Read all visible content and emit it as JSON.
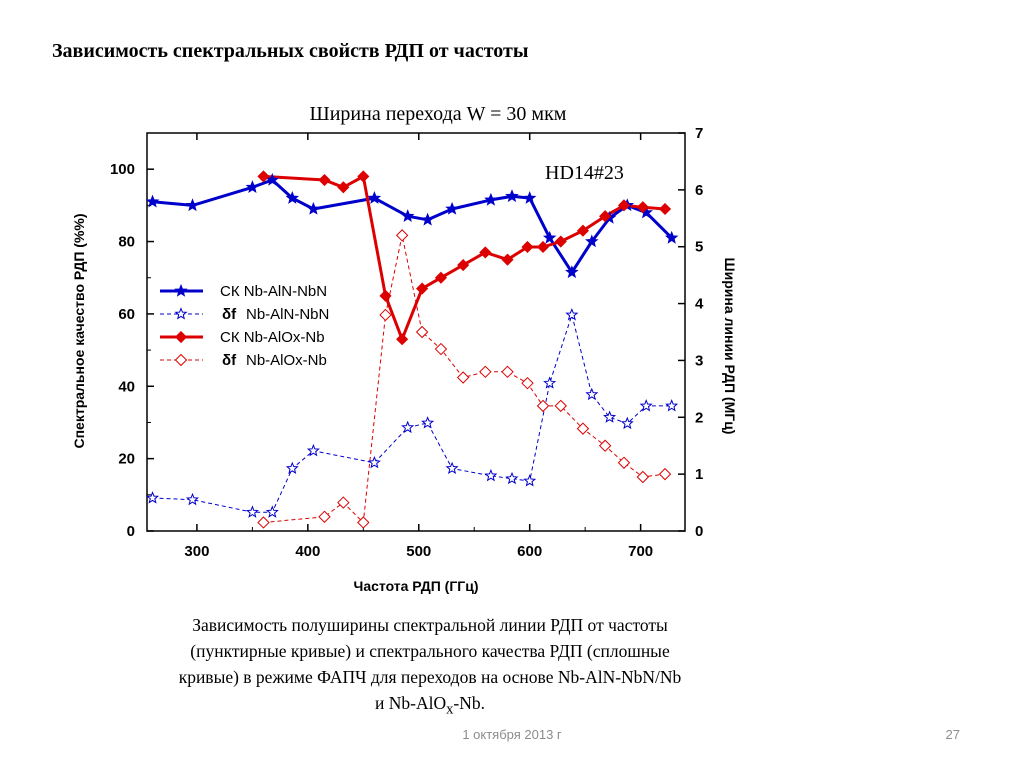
{
  "slide": {
    "title": "Зависимость спектральных свойств РДП от частоты",
    "caption_lines": [
      "Зависимость полуширины спектральной линии РДП от частоты",
      "(пунктирные кривые) и спектрального качества РДП (сплошные",
      "кривые) в режиме ФАПЧ для переходов на основе Nb-AlN-NbN/Nb"
    ],
    "caption_last": {
      "pre": "и Nb-AlO",
      "sub": "x",
      "post": "-Nb."
    },
    "date": "1 октября 2013 г",
    "page_number": "27"
  },
  "chart_data": {
    "type": "line",
    "title": "Ширина перехода W = 30 мкм",
    "annotation": "HD14#23",
    "xlabel": "Частота РДП (ГГц)",
    "ylabel_left": "Спектральное качество РДП (%%)",
    "ylabel_right": "Ширина линии РДП (МГц)",
    "xlim": [
      255,
      740
    ],
    "ylim_left": [
      0,
      110
    ],
    "ylim_right": [
      0,
      7
    ],
    "xticks": [
      300,
      400,
      500,
      600,
      700
    ],
    "yticks_left": [
      0,
      20,
      40,
      60,
      80,
      100
    ],
    "yticks_right": [
      0,
      1,
      2,
      3,
      4,
      5,
      6,
      7
    ],
    "legend_position": "left",
    "legend": [
      {
        "sym": "",
        "text": "СК  Nb-AlN-NbN"
      },
      {
        "sym": "δf",
        "text": "Nb-AlN-NbN"
      },
      {
        "sym": "",
        "text": "СК  Nb-AlOx-Nb"
      },
      {
        "sym": "δf",
        "text": "Nb-AlOx-Nb"
      }
    ],
    "series": [
      {
        "name": "СК  Nb-AlN-NbN",
        "axis": "left",
        "style": "solid",
        "marker": "star-filled",
        "color": "#0000cc",
        "points": [
          [
            260,
            91
          ],
          [
            296,
            90
          ],
          [
            350,
            95
          ],
          [
            368,
            97
          ],
          [
            386,
            92
          ],
          [
            405,
            89
          ],
          [
            460,
            92
          ],
          [
            490,
            87
          ],
          [
            508,
            86
          ],
          [
            530,
            89
          ],
          [
            565,
            91.5
          ],
          [
            584,
            92.5
          ],
          [
            600,
            92
          ],
          [
            618,
            81
          ],
          [
            638,
            71.5
          ],
          [
            656,
            80
          ],
          [
            672,
            86.5
          ],
          [
            688,
            90
          ],
          [
            705,
            88
          ],
          [
            728,
            81
          ]
        ]
      },
      {
        "name": "Nb-AlN-NbN",
        "axis": "right",
        "style": "dashed",
        "marker": "star-open",
        "color": "#0000cc",
        "points": [
          [
            260,
            0.58
          ],
          [
            296,
            0.55
          ],
          [
            350,
            0.33
          ],
          [
            368,
            0.33
          ],
          [
            386,
            1.1
          ],
          [
            405,
            1.41
          ],
          [
            460,
            1.2
          ],
          [
            490,
            1.82
          ],
          [
            508,
            1.9
          ],
          [
            530,
            1.1
          ],
          [
            565,
            0.97
          ],
          [
            584,
            0.92
          ],
          [
            600,
            0.88
          ],
          [
            618,
            2.6
          ],
          [
            638,
            3.8
          ],
          [
            656,
            2.4
          ],
          [
            672,
            2.0
          ],
          [
            688,
            1.89
          ],
          [
            705,
            2.2
          ],
          [
            728,
            2.2
          ]
        ]
      },
      {
        "name": "СК  Nb-AlOx-Nb",
        "axis": "left",
        "style": "solid",
        "marker": "diamond-filled",
        "color": "#dd0000",
        "points": [
          [
            360,
            98
          ],
          [
            415,
            97
          ],
          [
            432,
            95
          ],
          [
            450,
            98
          ],
          [
            470,
            65
          ],
          [
            485,
            53
          ],
          [
            503,
            67
          ],
          [
            520,
            70
          ],
          [
            540,
            73.5
          ],
          [
            560,
            77
          ],
          [
            580,
            75
          ],
          [
            598,
            78.5
          ],
          [
            612,
            78.5
          ],
          [
            628,
            80
          ],
          [
            648,
            83
          ],
          [
            668,
            87
          ],
          [
            685,
            90
          ],
          [
            702,
            89.5
          ],
          [
            722,
            89
          ]
        ]
      },
      {
        "name": "Nb-AlOx-Nb",
        "axis": "right",
        "style": "dashed",
        "marker": "diamond-open",
        "color": "#dd0000",
        "points": [
          [
            360,
            0.15
          ],
          [
            415,
            0.25
          ],
          [
            432,
            0.5
          ],
          [
            450,
            0.15
          ],
          [
            470,
            3.8
          ],
          [
            485,
            5.2
          ],
          [
            503,
            3.5
          ],
          [
            520,
            3.2
          ],
          [
            540,
            2.7
          ],
          [
            560,
            2.8
          ],
          [
            580,
            2.8
          ],
          [
            598,
            2.6
          ],
          [
            612,
            2.2
          ],
          [
            628,
            2.2
          ],
          [
            648,
            1.8
          ],
          [
            668,
            1.5
          ],
          [
            685,
            1.2
          ],
          [
            702,
            0.95
          ],
          [
            722,
            1.0
          ]
        ]
      }
    ]
  }
}
